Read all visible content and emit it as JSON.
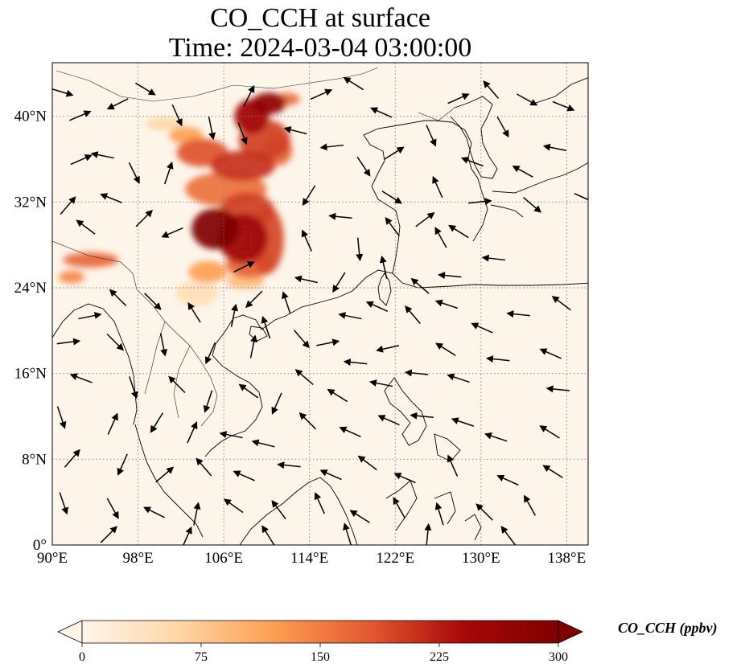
{
  "figure": {
    "title_line1": "CO_CCH at surface",
    "title_line2": "Time: 2024-03-04 03:00:00",
    "background_color": "#fdf5ea"
  },
  "map": {
    "lon_range": [
      90,
      140
    ],
    "lat_range": [
      0,
      45
    ],
    "gridline_style": "dotted",
    "lon_ticks": [
      {
        "value": 90,
        "label": "90°E"
      },
      {
        "value": 98,
        "label": "98°E"
      },
      {
        "value": 106,
        "label": "106°E"
      },
      {
        "value": 114,
        "label": "114°E"
      },
      {
        "value": 122,
        "label": "122°E"
      },
      {
        "value": 130,
        "label": "130°E"
      },
      {
        "value": 138,
        "label": "138°E"
      }
    ],
    "lat_ticks": [
      {
        "value": 0,
        "label": "0°"
      },
      {
        "value": 8,
        "label": "8°N"
      },
      {
        "value": 16,
        "label": "16°N"
      },
      {
        "value": 24,
        "label": "24°N"
      },
      {
        "value": 32,
        "label": "32°N"
      },
      {
        "value": 40,
        "label": "40°N"
      }
    ]
  },
  "colorbar": {
    "label": "CO_CCH (ppbv)",
    "min": 0,
    "max": 300,
    "extend": "both",
    "ticks": [
      {
        "value": 0,
        "label": "0"
      },
      {
        "value": 75,
        "label": "75"
      },
      {
        "value": 150,
        "label": "150"
      },
      {
        "value": 225,
        "label": "225"
      },
      {
        "value": 300,
        "label": "300"
      }
    ],
    "colors": [
      "#fff5eb",
      "#fdd7a8",
      "#fd9f53",
      "#e45a32",
      "#a80808",
      "#7f0000"
    ]
  },
  "chart_data": {
    "type": "heatmap",
    "variable": "CO_CCH",
    "units": "ppbv",
    "level": "surface",
    "time": "2024-03-04 03:00:00",
    "plumes": [
      {
        "lon": 105.2,
        "lat": 29.5,
        "r_lon": 2.2,
        "r_lat": 1.9,
        "value": 300
      },
      {
        "lon": 107.8,
        "lat": 28.6,
        "r_lon": 2.3,
        "r_lat": 2.3,
        "value": 255
      },
      {
        "lon": 108.2,
        "lat": 31.2,
        "r_lon": 2.5,
        "r_lat": 1.7,
        "value": 200
      },
      {
        "lon": 108.5,
        "lat": 26.2,
        "r_lon": 2.3,
        "r_lat": 1.3,
        "value": 175
      },
      {
        "lon": 110.0,
        "lat": 28.5,
        "r_lon": 1.6,
        "r_lat": 3.2,
        "value": 195
      },
      {
        "lon": 106.2,
        "lat": 33.2,
        "r_lon": 3.8,
        "r_lat": 1.6,
        "value": 160
      },
      {
        "lon": 104.0,
        "lat": 36.6,
        "r_lon": 2.4,
        "r_lat": 1.3,
        "value": 185
      },
      {
        "lon": 107.8,
        "lat": 35.4,
        "r_lon": 3.0,
        "r_lat": 1.4,
        "value": 210
      },
      {
        "lon": 109.8,
        "lat": 37.8,
        "r_lon": 2.4,
        "r_lat": 1.9,
        "value": 200
      },
      {
        "lon": 108.6,
        "lat": 40.0,
        "r_lon": 1.6,
        "r_lat": 1.6,
        "value": 250
      },
      {
        "lon": 110.2,
        "lat": 41.2,
        "r_lon": 1.6,
        "r_lat": 1.0,
        "value": 280
      },
      {
        "lon": 111.9,
        "lat": 41.6,
        "r_lon": 1.2,
        "r_lat": 0.6,
        "value": 165
      },
      {
        "lon": 111.0,
        "lat": 36.8,
        "r_lon": 1.4,
        "r_lat": 1.4,
        "value": 170
      },
      {
        "lon": 104.5,
        "lat": 25.5,
        "r_lon": 1.8,
        "r_lat": 1.0,
        "value": 120
      },
      {
        "lon": 102.5,
        "lat": 38.2,
        "r_lon": 1.6,
        "r_lat": 0.8,
        "value": 120
      },
      {
        "lon": 108.0,
        "lat": 24.6,
        "r_lon": 1.8,
        "r_lat": 0.7,
        "value": 90
      },
      {
        "lon": 93.6,
        "lat": 26.6,
        "r_lon": 2.6,
        "r_lat": 0.7,
        "value": 170
      },
      {
        "lon": 91.8,
        "lat": 25.0,
        "r_lon": 1.2,
        "r_lat": 0.6,
        "value": 140
      },
      {
        "lon": 100.5,
        "lat": 39.3,
        "r_lon": 1.8,
        "r_lat": 0.6,
        "value": 60
      },
      {
        "lon": 103.5,
        "lat": 23.5,
        "r_lon": 2.0,
        "r_lat": 1.2,
        "value": 45
      }
    ],
    "wind_vectors": [
      {
        "lon": 90.8,
        "lat": 42.3,
        "u": 1,
        "v": -0.3
      },
      {
        "lon": 92.5,
        "lat": 40.0,
        "u": 0.7,
        "v": 0.3
      },
      {
        "lon": 96.2,
        "lat": 41.2,
        "u": -0.8,
        "v": -0.4
      },
      {
        "lon": 98.6,
        "lat": 42.6,
        "u": 1,
        "v": -0.6
      },
      {
        "lon": 101.6,
        "lat": 40.2,
        "u": 0.4,
        "v": -0.9
      },
      {
        "lon": 94.8,
        "lat": 36.3,
        "u": -1,
        "v": 0.2
      },
      {
        "lon": 92.6,
        "lat": 35.9,
        "u": 0.9,
        "v": 0.4
      },
      {
        "lon": 97.6,
        "lat": 34.8,
        "u": 0.5,
        "v": -1
      },
      {
        "lon": 100.8,
        "lat": 34.6,
        "u": 0.2,
        "v": 0.6
      },
      {
        "lon": 95.6,
        "lat": 32.3,
        "u": -1,
        "v": 0.4
      },
      {
        "lon": 91.4,
        "lat": 31.6,
        "u": 0.6,
        "v": 0.7
      },
      {
        "lon": 98.5,
        "lat": 30.4,
        "u": 0.8,
        "v": 0.8
      },
      {
        "lon": 93.2,
        "lat": 29.6,
        "u": -0.8,
        "v": 0.6
      },
      {
        "lon": 101.3,
        "lat": 29.2,
        "u": -0.7,
        "v": -0.3
      },
      {
        "lon": 104.8,
        "lat": 39.0,
        "u": 0.2,
        "v": -1
      },
      {
        "lon": 107.7,
        "lat": 38.5,
        "u": 0.3,
        "v": -0.8
      },
      {
        "lon": 108.3,
        "lat": 41.8,
        "u": 0.4,
        "v": 0.8
      },
      {
        "lon": 112.8,
        "lat": 38.6,
        "u": -0.8,
        "v": 0.2
      },
      {
        "lon": 115.0,
        "lat": 42.0,
        "u": 0.9,
        "v": 0.4
      },
      {
        "lon": 118.2,
        "lat": 43.0,
        "u": -0.8,
        "v": 0.5
      },
      {
        "lon": 120.8,
        "lat": 40.3,
        "u": -0.9,
        "v": 0.4
      },
      {
        "lon": 116.2,
        "lat": 37.2,
        "u": -0.9,
        "v": -0.1
      },
      {
        "lon": 119.0,
        "lat": 35.4,
        "u": 0.6,
        "v": -0.9
      },
      {
        "lon": 121.8,
        "lat": 36.5,
        "u": 0.8,
        "v": 0.5
      },
      {
        "lon": 125.3,
        "lat": 38.3,
        "u": 0.4,
        "v": -0.9
      },
      {
        "lon": 127.8,
        "lat": 41.6,
        "u": 0.9,
        "v": 0.4
      },
      {
        "lon": 131.0,
        "lat": 42.4,
        "u": -0.6,
        "v": 0.7
      },
      {
        "lon": 134.2,
        "lat": 41.6,
        "u": 0.9,
        "v": -0.5
      },
      {
        "lon": 137.6,
        "lat": 41.0,
        "u": 1,
        "v": -0.4
      },
      {
        "lon": 132.0,
        "lat": 39.1,
        "u": 0.5,
        "v": -0.9
      },
      {
        "lon": 137.0,
        "lat": 37.0,
        "u": -1,
        "v": 0.2
      },
      {
        "lon": 134.0,
        "lat": 34.8,
        "u": -0.9,
        "v": 0.5
      },
      {
        "lon": 129.3,
        "lat": 35.7,
        "u": -0.8,
        "v": 0.3
      },
      {
        "lon": 126.0,
        "lat": 33.3,
        "u": -0.4,
        "v": 0.9
      },
      {
        "lon": 129.8,
        "lat": 32.0,
        "u": 1,
        "v": 0.1
      },
      {
        "lon": 134.7,
        "lat": 31.8,
        "u": 0.7,
        "v": -0.6
      },
      {
        "lon": 139.6,
        "lat": 32.4,
        "u": 0.9,
        "v": -0.4
      },
      {
        "lon": 121.6,
        "lat": 32.5,
        "u": 0.8,
        "v": -0.5
      },
      {
        "lon": 117.0,
        "lat": 30.6,
        "u": -1,
        "v": 0.1
      },
      {
        "lon": 114.0,
        "lat": 32.7,
        "u": -0.5,
        "v": -0.8
      },
      {
        "lon": 113.8,
        "lat": 28.3,
        "u": -0.4,
        "v": 0.9
      },
      {
        "lon": 118.6,
        "lat": 27.7,
        "u": 0.1,
        "v": -1
      },
      {
        "lon": 121.8,
        "lat": 29.6,
        "u": -0.6,
        "v": 0.8
      },
      {
        "lon": 124.7,
        "lat": 30.3,
        "u": 0.8,
        "v": 0.6
      },
      {
        "lon": 126.3,
        "lat": 28.6,
        "u": -0.5,
        "v": 0.9
      },
      {
        "lon": 128.0,
        "lat": 29.2,
        "u": -0.8,
        "v": 0.5
      },
      {
        "lon": 131.3,
        "lat": 26.7,
        "u": -0.9,
        "v": 0.1
      },
      {
        "lon": 127.2,
        "lat": 25.1,
        "u": -1,
        "v": 0.1
      },
      {
        "lon": 124.4,
        "lat": 24.1,
        "u": -0.7,
        "v": 0.6
      },
      {
        "lon": 121.0,
        "lat": 25.8,
        "u": -0.2,
        "v": 0.9
      },
      {
        "lon": 116.8,
        "lat": 24.6,
        "u": -0.5,
        "v": -0.8
      },
      {
        "lon": 113.8,
        "lat": 24.7,
        "u": -0.9,
        "v": 0.2
      },
      {
        "lon": 111.9,
        "lat": 22.5,
        "u": -0.3,
        "v": 0.9
      },
      {
        "lon": 108.9,
        "lat": 23.0,
        "u": -0.7,
        "v": -0.7
      },
      {
        "lon": 107.8,
        "lat": 25.9,
        "u": 0.8,
        "v": 0.4
      },
      {
        "lon": 106.9,
        "lat": 21.3,
        "u": 0.2,
        "v": 1
      },
      {
        "lon": 103.3,
        "lat": 21.6,
        "u": -0.5,
        "v": 0.8
      },
      {
        "lon": 99.3,
        "lat": 22.8,
        "u": 0.6,
        "v": -0.6
      },
      {
        "lon": 96.2,
        "lat": 23.0,
        "u": -0.7,
        "v": 0.7
      },
      {
        "lon": 93.4,
        "lat": 21.3,
        "u": 1,
        "v": 0.2
      },
      {
        "lon": 91.4,
        "lat": 18.9,
        "u": 0.8,
        "v": 0.1
      },
      {
        "lon": 95.8,
        "lat": 19.0,
        "u": 0.6,
        "v": -0.6
      },
      {
        "lon": 100.3,
        "lat": 18.8,
        "u": 0.2,
        "v": -1
      },
      {
        "lon": 104.8,
        "lat": 18.0,
        "u": -0.4,
        "v": -0.9
      },
      {
        "lon": 108.7,
        "lat": 18.4,
        "u": 0.2,
        "v": 1
      },
      {
        "lon": 110.0,
        "lat": 20.2,
        "u": -0.3,
        "v": 0.9
      },
      {
        "lon": 113.2,
        "lat": 19.3,
        "u": 0.6,
        "v": -0.7
      },
      {
        "lon": 115.6,
        "lat": 18.8,
        "u": 1,
        "v": 0.2
      },
      {
        "lon": 117.9,
        "lat": 21.3,
        "u": -1,
        "v": 0.2
      },
      {
        "lon": 120.4,
        "lat": 22.2,
        "u": -0.9,
        "v": 0.4
      },
      {
        "lon": 123.7,
        "lat": 21.4,
        "u": -0.6,
        "v": 0.7
      },
      {
        "lon": 126.9,
        "lat": 22.4,
        "u": -0.9,
        "v": 0.3
      },
      {
        "lon": 130.2,
        "lat": 20.2,
        "u": -0.9,
        "v": 0.4
      },
      {
        "lon": 133.6,
        "lat": 21.5,
        "u": -1,
        "v": 0.1
      },
      {
        "lon": 137.6,
        "lat": 22.5,
        "u": -0.8,
        "v": 0.6
      },
      {
        "lon": 126.8,
        "lat": 18.2,
        "u": -0.8,
        "v": 0.5
      },
      {
        "lon": 121.4,
        "lat": 18.4,
        "u": -0.9,
        "v": -0.2
      },
      {
        "lon": 118.4,
        "lat": 17.0,
        "u": -1,
        "v": 0.1
      },
      {
        "lon": 131.7,
        "lat": 17.3,
        "u": -1,
        "v": 0.1
      },
      {
        "lon": 136.6,
        "lat": 17.8,
        "u": -0.9,
        "v": 0.4
      },
      {
        "lon": 113.6,
        "lat": 15.6,
        "u": -0.7,
        "v": 0.6
      },
      {
        "lon": 116.7,
        "lat": 13.9,
        "u": -0.8,
        "v": 0.5
      },
      {
        "lon": 120.8,
        "lat": 15.0,
        "u": -1,
        "v": 0.2
      },
      {
        "lon": 124.1,
        "lat": 16.0,
        "u": -1,
        "v": 0.1
      },
      {
        "lon": 128.0,
        "lat": 15.5,
        "u": -0.9,
        "v": 0.3
      },
      {
        "lon": 137.3,
        "lat": 14.5,
        "u": -1,
        "v": 0.1
      },
      {
        "lon": 111.0,
        "lat": 13.3,
        "u": -0.4,
        "v": -0.9
      },
      {
        "lon": 108.4,
        "lat": 14.3,
        "u": -0.7,
        "v": 0.5
      },
      {
        "lon": 104.6,
        "lat": 13.5,
        "u": -0.3,
        "v": -0.9
      },
      {
        "lon": 101.7,
        "lat": 14.9,
        "u": -0.6,
        "v": 0.6
      },
      {
        "lon": 97.5,
        "lat": 14.8,
        "u": 0.3,
        "v": -0.9
      },
      {
        "lon": 92.8,
        "lat": 15.5,
        "u": -0.8,
        "v": 0.3
      },
      {
        "lon": 90.8,
        "lat": 12.0,
        "u": 0.3,
        "v": -0.9
      },
      {
        "lon": 95.6,
        "lat": 11.2,
        "u": 0.4,
        "v": 0.9
      },
      {
        "lon": 99.8,
        "lat": 11.5,
        "u": -0.5,
        "v": -0.8
      },
      {
        "lon": 103.0,
        "lat": 10.4,
        "u": 0.4,
        "v": 0.9
      },
      {
        "lon": 106.8,
        "lat": 10.2,
        "u": -1,
        "v": 0.2
      },
      {
        "lon": 109.8,
        "lat": 9.4,
        "u": -0.8,
        "v": 0.2
      },
      {
        "lon": 113.9,
        "lat": 11.5,
        "u": -0.7,
        "v": 0.7
      },
      {
        "lon": 117.9,
        "lat": 10.5,
        "u": -0.9,
        "v": 0.4
      },
      {
        "lon": 121.5,
        "lat": 11.6,
        "u": -0.9,
        "v": 0.4
      },
      {
        "lon": 124.6,
        "lat": 12.0,
        "u": -1,
        "v": 0.1
      },
      {
        "lon": 128.4,
        "lat": 11.4,
        "u": -0.9,
        "v": 0.3
      },
      {
        "lon": 131.5,
        "lat": 10.0,
        "u": -0.9,
        "v": 0.3
      },
      {
        "lon": 136.5,
        "lat": 10.5,
        "u": -0.8,
        "v": 0.5
      },
      {
        "lon": 91.8,
        "lat": 8.0,
        "u": 0.6,
        "v": 0.7
      },
      {
        "lon": 96.6,
        "lat": 7.6,
        "u": -0.4,
        "v": -0.9
      },
      {
        "lon": 100.4,
        "lat": 6.5,
        "u": 0.7,
        "v": 0.6
      },
      {
        "lon": 104.2,
        "lat": 7.2,
        "u": -0.6,
        "v": 0.7
      },
      {
        "lon": 108.0,
        "lat": 6.4,
        "u": -0.9,
        "v": 0.4
      },
      {
        "lon": 112.2,
        "lat": 7.4,
        "u": -1,
        "v": 0.1
      },
      {
        "lon": 116.1,
        "lat": 6.5,
        "u": -0.9,
        "v": 0.4
      },
      {
        "lon": 119.5,
        "lat": 7.6,
        "u": -0.8,
        "v": 0.6
      },
      {
        "lon": 123.0,
        "lat": 6.2,
        "u": -0.9,
        "v": 0.4
      },
      {
        "lon": 127.4,
        "lat": 7.3,
        "u": -0.4,
        "v": 0.9
      },
      {
        "lon": 132.6,
        "lat": 6.0,
        "u": -0.9,
        "v": 0.4
      },
      {
        "lon": 136.8,
        "lat": 6.8,
        "u": -0.8,
        "v": 0.5
      },
      {
        "lon": 91.0,
        "lat": 4.0,
        "u": 0.3,
        "v": -0.9
      },
      {
        "lon": 95.6,
        "lat": 3.5,
        "u": 0.5,
        "v": -0.9
      },
      {
        "lon": 99.6,
        "lat": 3.0,
        "u": -0.8,
        "v": 0.4
      },
      {
        "lon": 103.4,
        "lat": 2.8,
        "u": 0.2,
        "v": 1
      },
      {
        "lon": 107.0,
        "lat": 3.6,
        "u": -0.7,
        "v": 0.5
      },
      {
        "lon": 111.2,
        "lat": 3.2,
        "u": -0.6,
        "v": 0.8
      },
      {
        "lon": 115.0,
        "lat": 3.8,
        "u": -0.4,
        "v": 0.9
      },
      {
        "lon": 118.8,
        "lat": 2.6,
        "u": -0.8,
        "v": 0.5
      },
      {
        "lon": 122.4,
        "lat": 3.4,
        "u": -0.5,
        "v": 0.9
      },
      {
        "lon": 126.2,
        "lat": 2.8,
        "u": -0.3,
        "v": 1
      },
      {
        "lon": 130.4,
        "lat": 3.0,
        "u": -0.7,
        "v": 0.7
      },
      {
        "lon": 134.6,
        "lat": 3.6,
        "u": -0.5,
        "v": 0.9
      },
      {
        "lon": 95.2,
        "lat": 0.9,
        "u": 0.7,
        "v": 0.7
      },
      {
        "lon": 102.5,
        "lat": 0.6,
        "u": 0.4,
        "v": 0.9
      },
      {
        "lon": 110.2,
        "lat": 0.8,
        "u": -0.5,
        "v": 0.8
      },
      {
        "lon": 117.6,
        "lat": 0.9,
        "u": -0.3,
        "v": 1
      },
      {
        "lon": 125.0,
        "lat": 0.8,
        "u": 0.1,
        "v": 1
      },
      {
        "lon": 132.6,
        "lat": 0.8,
        "u": -0.6,
        "v": 0.8
      }
    ]
  }
}
